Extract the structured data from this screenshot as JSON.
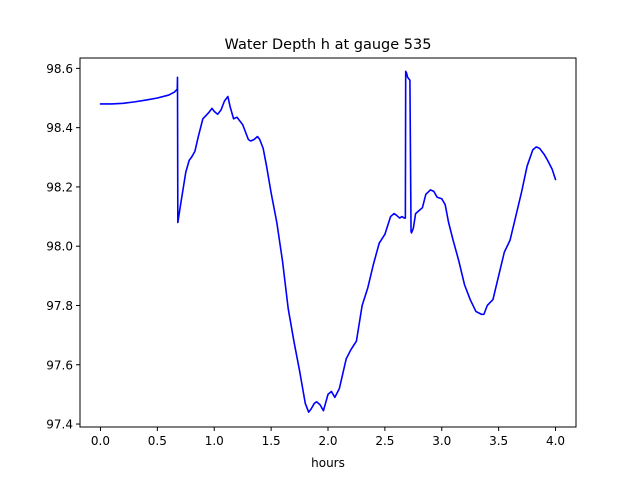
{
  "chart_data": {
    "type": "line",
    "title": "Water Depth h at gauge 535",
    "xlabel": "hours",
    "ylabel": "",
    "xlim": [
      -0.18,
      4.18
    ],
    "ylim": [
      97.39,
      98.635
    ],
    "xticks": [
      0.0,
      0.5,
      1.0,
      1.5,
      2.0,
      2.5,
      3.0,
      3.5,
      4.0
    ],
    "xtick_labels": [
      "0.0",
      "0.5",
      "1.0",
      "1.5",
      "2.0",
      "2.5",
      "3.0",
      "3.5",
      "4.0"
    ],
    "yticks": [
      97.4,
      97.6,
      97.8,
      98.0,
      98.2,
      98.4,
      98.6
    ],
    "ytick_labels": [
      "97.4",
      "97.6",
      "97.8",
      "98.0",
      "98.2",
      "98.4",
      "98.6"
    ],
    "grid": false,
    "legend": "none",
    "series": [
      {
        "color": "#0000ff",
        "x": [
          0.0,
          0.1,
          0.2,
          0.3,
          0.4,
          0.5,
          0.6,
          0.65,
          0.675,
          0.677,
          0.68,
          0.7,
          0.75,
          0.78,
          0.8,
          0.83,
          0.86,
          0.9,
          0.95,
          0.98,
          1.0,
          1.03,
          1.06,
          1.09,
          1.12,
          1.14,
          1.17,
          1.2,
          1.25,
          1.3,
          1.32,
          1.35,
          1.38,
          1.4,
          1.43,
          1.46,
          1.5,
          1.55,
          1.6,
          1.65,
          1.7,
          1.75,
          1.8,
          1.83,
          1.85,
          1.88,
          1.9,
          1.93,
          1.96,
          2.0,
          2.03,
          2.06,
          2.1,
          2.13,
          2.16,
          2.2,
          2.25,
          2.3,
          2.35,
          2.4,
          2.45,
          2.5,
          2.55,
          2.58,
          2.6,
          2.63,
          2.65,
          2.67,
          2.68,
          2.683,
          2.69,
          2.7,
          2.72,
          2.73,
          2.734,
          2.75,
          2.77,
          2.8,
          2.83,
          2.86,
          2.9,
          2.93,
          2.96,
          3.0,
          3.03,
          3.06,
          3.1,
          3.15,
          3.2,
          3.25,
          3.3,
          3.35,
          3.37,
          3.4,
          3.45,
          3.5,
          3.55,
          3.6,
          3.65,
          3.7,
          3.75,
          3.8,
          3.83,
          3.86,
          3.9,
          3.93,
          3.97,
          4.0
        ],
        "y": [
          98.48,
          98.48,
          98.482,
          98.487,
          98.493,
          98.5,
          98.51,
          98.52,
          98.53,
          98.57,
          98.08,
          98.13,
          98.25,
          98.29,
          98.3,
          98.32,
          98.37,
          98.43,
          98.45,
          98.465,
          98.455,
          98.445,
          98.46,
          98.49,
          98.505,
          98.47,
          98.43,
          98.435,
          98.41,
          98.36,
          98.355,
          98.36,
          98.37,
          98.36,
          98.33,
          98.27,
          98.18,
          98.08,
          97.95,
          97.79,
          97.68,
          97.58,
          97.47,
          97.44,
          97.45,
          97.47,
          97.475,
          97.465,
          97.445,
          97.5,
          97.51,
          97.49,
          97.52,
          97.57,
          97.62,
          97.65,
          97.68,
          97.8,
          97.86,
          97.94,
          98.01,
          98.04,
          98.1,
          98.11,
          98.105,
          98.095,
          98.1,
          98.095,
          98.095,
          98.59,
          98.585,
          98.57,
          98.56,
          98.05,
          98.045,
          98.06,
          98.11,
          98.12,
          98.13,
          98.175,
          98.19,
          98.185,
          98.165,
          98.16,
          98.14,
          98.08,
          98.02,
          97.95,
          97.87,
          97.82,
          97.78,
          97.77,
          97.77,
          97.8,
          97.82,
          97.9,
          97.98,
          98.02,
          98.1,
          98.18,
          98.27,
          98.325,
          98.335,
          98.33,
          98.31,
          98.29,
          98.26,
          98.225
        ]
      }
    ]
  }
}
